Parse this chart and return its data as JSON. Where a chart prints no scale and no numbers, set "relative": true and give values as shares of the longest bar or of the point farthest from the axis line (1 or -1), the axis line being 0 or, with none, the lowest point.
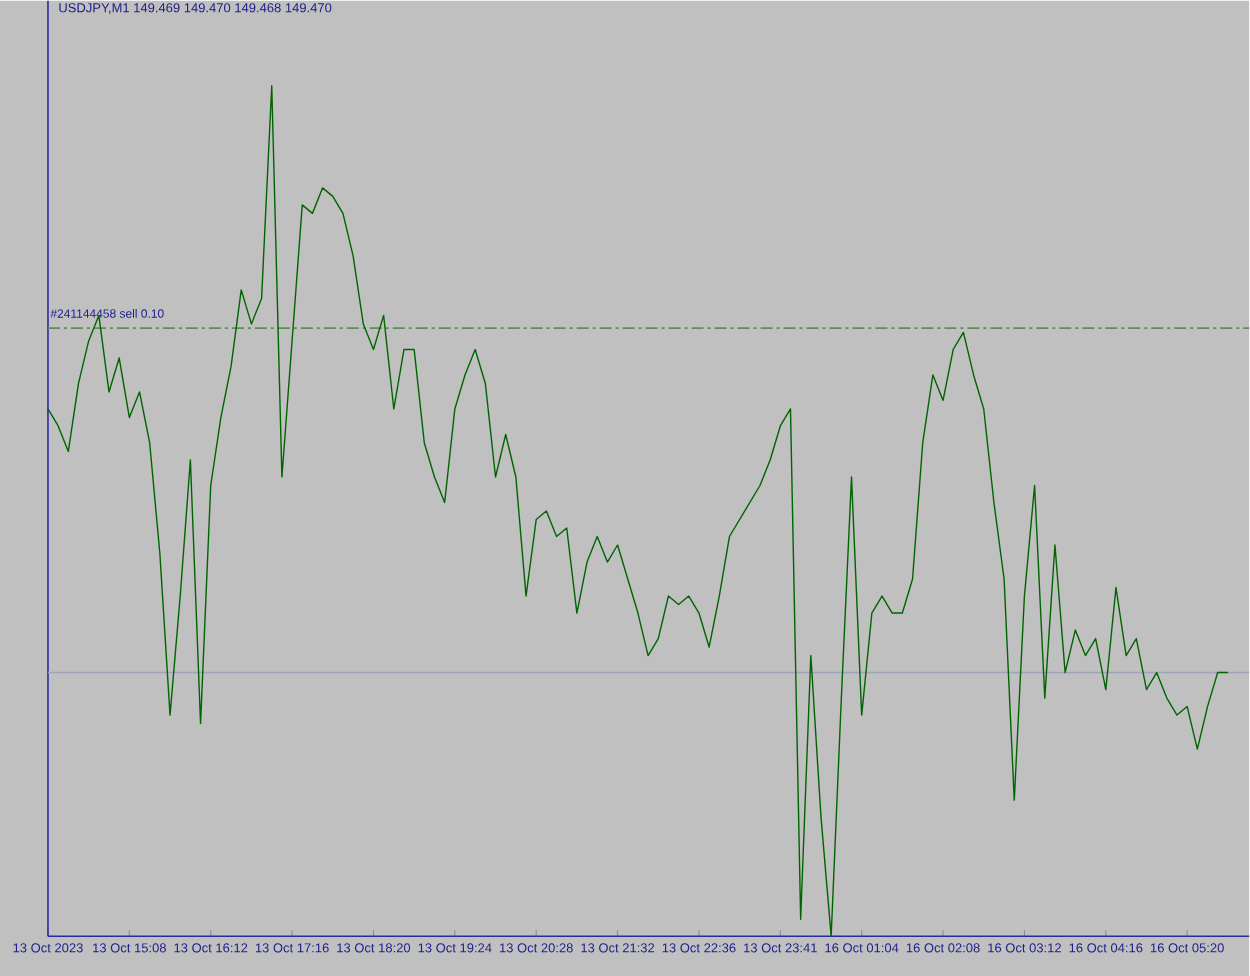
{
  "chart_data": {
    "type": "line",
    "title": "USDJPY,M1  149.469 149.470 149.468 149.470",
    "relative": true,
    "categories": [
      "13 Oct 2023",
      null,
      null,
      null,
      null,
      null,
      null,
      null,
      "13 Oct 15:08",
      null,
      null,
      null,
      null,
      null,
      null,
      null,
      "13 Oct 16:12",
      null,
      null,
      null,
      null,
      null,
      null,
      null,
      "13 Oct 17:16",
      null,
      null,
      null,
      null,
      null,
      null,
      null,
      "13 Oct 18:20",
      null,
      null,
      null,
      null,
      null,
      null,
      null,
      "13 Oct 19:24",
      null,
      null,
      null,
      null,
      null,
      null,
      null,
      "13 Oct 20:28",
      null,
      null,
      null,
      null,
      null,
      null,
      null,
      "13 Oct 21:32",
      null,
      null,
      null,
      null,
      null,
      null,
      null,
      "13 Oct 22:36",
      null,
      null,
      null,
      null,
      null,
      null,
      null,
      "13 Oct 23:41",
      null,
      null,
      null,
      null,
      null,
      null,
      null,
      "16 Oct 01:04",
      null,
      null,
      null,
      null,
      null,
      null,
      null,
      "16 Oct 02:08",
      null,
      null,
      null,
      null,
      null,
      null,
      null,
      "16 Oct 03:12",
      null,
      null,
      null,
      null,
      null,
      null,
      null,
      "16 Oct 04:16",
      null,
      null,
      null,
      null,
      null,
      null,
      null,
      "16 Oct 05:20",
      null,
      null,
      null,
      null
    ],
    "series": [
      {
        "color": "#006400",
        "values": [
          0.62,
          0.6,
          0.57,
          0.65,
          0.7,
          0.73,
          0.64,
          0.68,
          0.61,
          0.64,
          0.58,
          0.45,
          0.26,
          0.4,
          0.56,
          0.25,
          0.53,
          0.61,
          0.67,
          0.76,
          0.72,
          0.75,
          1,
          0.54,
          0.7,
          0.86,
          0.85,
          0.88,
          0.87,
          0.85,
          0.8,
          0.72,
          0.69,
          0.73,
          0.62,
          0.69,
          0.69,
          0.58,
          0.54,
          0.51,
          0.62,
          0.66,
          0.69,
          0.65,
          0.54,
          0.59,
          0.54,
          0.4,
          0.49,
          0.5,
          0.47,
          0.48,
          0.38,
          0.44,
          0.47,
          0.44,
          0.46,
          0.42,
          0.38,
          0.33,
          0.35,
          0.4,
          0.39,
          0.4,
          0.38,
          0.34,
          0.4,
          0.47,
          0.49,
          0.51,
          0.53,
          0.56,
          0.6,
          0.62,
          0.02,
          0.33,
          0.14,
          0,
          0.28,
          0.54,
          0.26,
          0.38,
          0.4,
          0.38,
          0.38,
          0.42,
          0.58,
          0.66,
          0.63,
          0.69,
          0.71,
          0.66,
          0.62,
          0.51,
          0.42,
          0.16,
          0.4,
          0.53,
          0.28,
          0.46,
          0.31,
          0.36,
          0.33,
          0.35,
          0.29,
          0.41,
          0.33,
          0.35,
          0.29,
          0.31,
          0.28,
          0.26,
          0.27,
          0.22,
          0.27,
          0.31,
          0.31
        ]
      }
    ],
    "tick_labels": "x",
    "ref_lines": [
      {
        "axis": "y",
        "value": 0.715,
        "label": "#241144458 sell 0.10",
        "color": "#5f8f55",
        "line_style": "dashed"
      },
      {
        "axis": "y",
        "value": 0.31,
        "color": "#9ea3b8"
      }
    ]
  }
}
